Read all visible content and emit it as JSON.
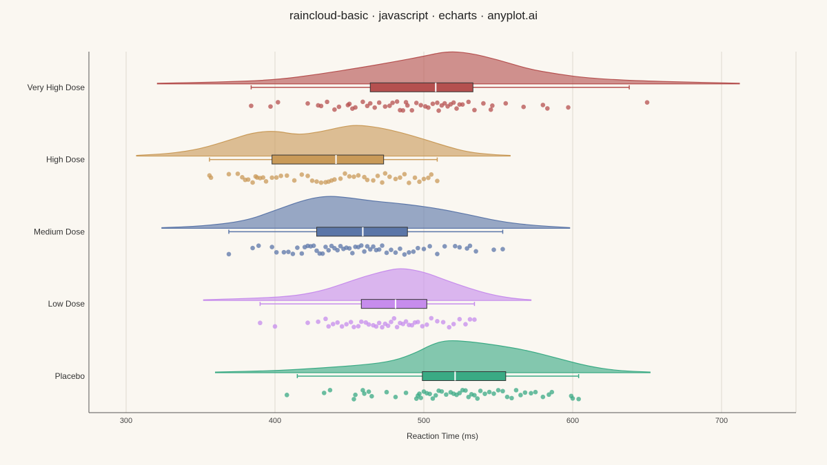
{
  "chart_data": {
    "type": "raincloud",
    "title": "raincloud-basic · javascript · echarts · anyplot.ai",
    "xlabel": "Reaction Time (ms)",
    "ylabel": "",
    "xlim": [
      275,
      750
    ],
    "xticks": [
      300,
      400,
      500,
      600,
      700
    ],
    "xtick_labels": [
      "300",
      "400",
      "500",
      "600",
      "700"
    ],
    "grid": true,
    "categories": [
      "Very High Dose",
      "High Dose",
      "Medium Dose",
      "Low Dose",
      "Placebo"
    ],
    "series": [
      {
        "category": "Very High Dose",
        "color": "#b5504f",
        "box": {
          "whisker_low": 384,
          "q1": 464,
          "median": 508,
          "q3": 533,
          "whisker_high": 638
        },
        "density_range": [
          321,
          712
        ],
        "density": [
          [
            321,
            0.02
          ],
          [
            360,
            0.05
          ],
          [
            400,
            0.12
          ],
          [
            430,
            0.3
          ],
          [
            460,
            0.52
          ],
          [
            480,
            0.68
          ],
          [
            500,
            0.85
          ],
          [
            515,
            1.0
          ],
          [
            530,
            0.96
          ],
          [
            550,
            0.74
          ],
          [
            570,
            0.46
          ],
          [
            590,
            0.3
          ],
          [
            610,
            0.18
          ],
          [
            640,
            0.1
          ],
          [
            680,
            0.05
          ],
          [
            712,
            0.02
          ]
        ],
        "points": [
          384,
          397,
          402,
          422,
          429,
          431,
          435,
          440,
          443,
          449,
          450,
          452,
          454,
          459,
          462,
          464,
          467,
          470,
          474,
          477,
          479,
          482,
          484,
          486,
          488,
          489,
          492,
          495,
          498,
          501,
          503,
          506,
          509,
          510,
          512,
          514,
          516,
          518,
          520,
          522,
          524,
          526,
          530,
          534,
          540,
          545,
          546,
          555,
          567,
          580,
          583,
          597,
          650
        ]
      },
      {
        "category": "High Dose",
        "color": "#c99a58",
        "box": {
          "whisker_low": 356,
          "q1": 398,
          "median": 441,
          "q3": 473,
          "whisker_high": 509
        },
        "density_range": [
          307,
          558
        ],
        "density": [
          [
            307,
            0.02
          ],
          [
            330,
            0.08
          ],
          [
            350,
            0.22
          ],
          [
            370,
            0.5
          ],
          [
            385,
            0.72
          ],
          [
            400,
            0.78
          ],
          [
            415,
            0.65
          ],
          [
            430,
            0.74
          ],
          [
            445,
            0.9
          ],
          [
            455,
            0.96
          ],
          [
            470,
            0.88
          ],
          [
            485,
            0.72
          ],
          [
            500,
            0.52
          ],
          [
            515,
            0.3
          ],
          [
            530,
            0.12
          ],
          [
            545,
            0.05
          ],
          [
            558,
            0.02
          ]
        ],
        "points": [
          356,
          357,
          369,
          375,
          378,
          380,
          382,
          385,
          387,
          388,
          390,
          392,
          394,
          398,
          401,
          404,
          408,
          413,
          418,
          422,
          425,
          428,
          431,
          434,
          436,
          438,
          440,
          444,
          447,
          450,
          453,
          456,
          460,
          462,
          466,
          469,
          472,
          474,
          477,
          481,
          484,
          487,
          490,
          494,
          497,
          500,
          503,
          505,
          509
        ]
      },
      {
        "category": "Medium Dose",
        "color": "#5b76a8",
        "box": {
          "whisker_low": 369,
          "q1": 428,
          "median": 459,
          "q3": 489,
          "whisker_high": 553
        },
        "density_range": [
          324,
          598
        ],
        "density": [
          [
            324,
            0.02
          ],
          [
            350,
            0.06
          ],
          [
            380,
            0.22
          ],
          [
            400,
            0.55
          ],
          [
            420,
            0.88
          ],
          [
            435,
            1.0
          ],
          [
            450,
            0.94
          ],
          [
            465,
            0.84
          ],
          [
            480,
            0.78
          ],
          [
            495,
            0.7
          ],
          [
            510,
            0.6
          ],
          [
            530,
            0.42
          ],
          [
            550,
            0.22
          ],
          [
            570,
            0.1
          ],
          [
            598,
            0.02
          ]
        ],
        "points": [
          369,
          385,
          389,
          398,
          401,
          406,
          409,
          412,
          415,
          418,
          420,
          422,
          424,
          426,
          428,
          430,
          432,
          434,
          436,
          438,
          440,
          442,
          444,
          446,
          448,
          450,
          452,
          454,
          456,
          458,
          460,
          462,
          464,
          466,
          468,
          470,
          472,
          475,
          478,
          481,
          484,
          487,
          490,
          493,
          496,
          500,
          504,
          509,
          514,
          521,
          524,
          529,
          531,
          535,
          547,
          553
        ]
      },
      {
        "category": "Low Dose",
        "color": "#c68cec",
        "box": {
          "whisker_low": 390,
          "q1": 458,
          "median": 481,
          "q3": 502,
          "whisker_high": 534
        },
        "density_range": [
          352,
          572
        ],
        "density": [
          [
            352,
            0.02
          ],
          [
            380,
            0.06
          ],
          [
            410,
            0.12
          ],
          [
            430,
            0.28
          ],
          [
            445,
            0.5
          ],
          [
            460,
            0.74
          ],
          [
            475,
            0.92
          ],
          [
            485,
            1.0
          ],
          [
            500,
            0.88
          ],
          [
            515,
            0.62
          ],
          [
            530,
            0.38
          ],
          [
            545,
            0.18
          ],
          [
            560,
            0.06
          ],
          [
            572,
            0.02
          ]
        ],
        "points": [
          390,
          400,
          422,
          429,
          434,
          436,
          439,
          442,
          445,
          448,
          451,
          453,
          456,
          458,
          461,
          463,
          466,
          468,
          470,
          472,
          474,
          476,
          478,
          480,
          482,
          484,
          486,
          488,
          490,
          492,
          494,
          496,
          499,
          502,
          505,
          509,
          513,
          517,
          520,
          524,
          528,
          531,
          534
        ]
      },
      {
        "category": "Placebo",
        "color": "#3aaa84",
        "box": {
          "whisker_low": 415,
          "q1": 499,
          "median": 521,
          "q3": 555,
          "whisker_high": 604
        },
        "density_range": [
          360,
          652
        ],
        "density": [
          [
            360,
            0.02
          ],
          [
            400,
            0.06
          ],
          [
            430,
            0.14
          ],
          [
            460,
            0.24
          ],
          [
            480,
            0.36
          ],
          [
            495,
            0.62
          ],
          [
            505,
            0.86
          ],
          [
            515,
            1.0
          ],
          [
            530,
            0.96
          ],
          [
            550,
            0.84
          ],
          [
            570,
            0.68
          ],
          [
            590,
            0.44
          ],
          [
            610,
            0.2
          ],
          [
            630,
            0.06
          ],
          [
            652,
            0.02
          ]
        ],
        "points": [
          408,
          433,
          437,
          453,
          454,
          459,
          460,
          463,
          465,
          475,
          481,
          488,
          495,
          496,
          497,
          498,
          500,
          502,
          504,
          506,
          508,
          510,
          512,
          515,
          518,
          520,
          522,
          524,
          526,
          528,
          530,
          532,
          534,
          536,
          538,
          541,
          544,
          547,
          550,
          553,
          556,
          559,
          562,
          565,
          568,
          572,
          575,
          580,
          584,
          586,
          599,
          600,
          604
        ]
      }
    ]
  }
}
